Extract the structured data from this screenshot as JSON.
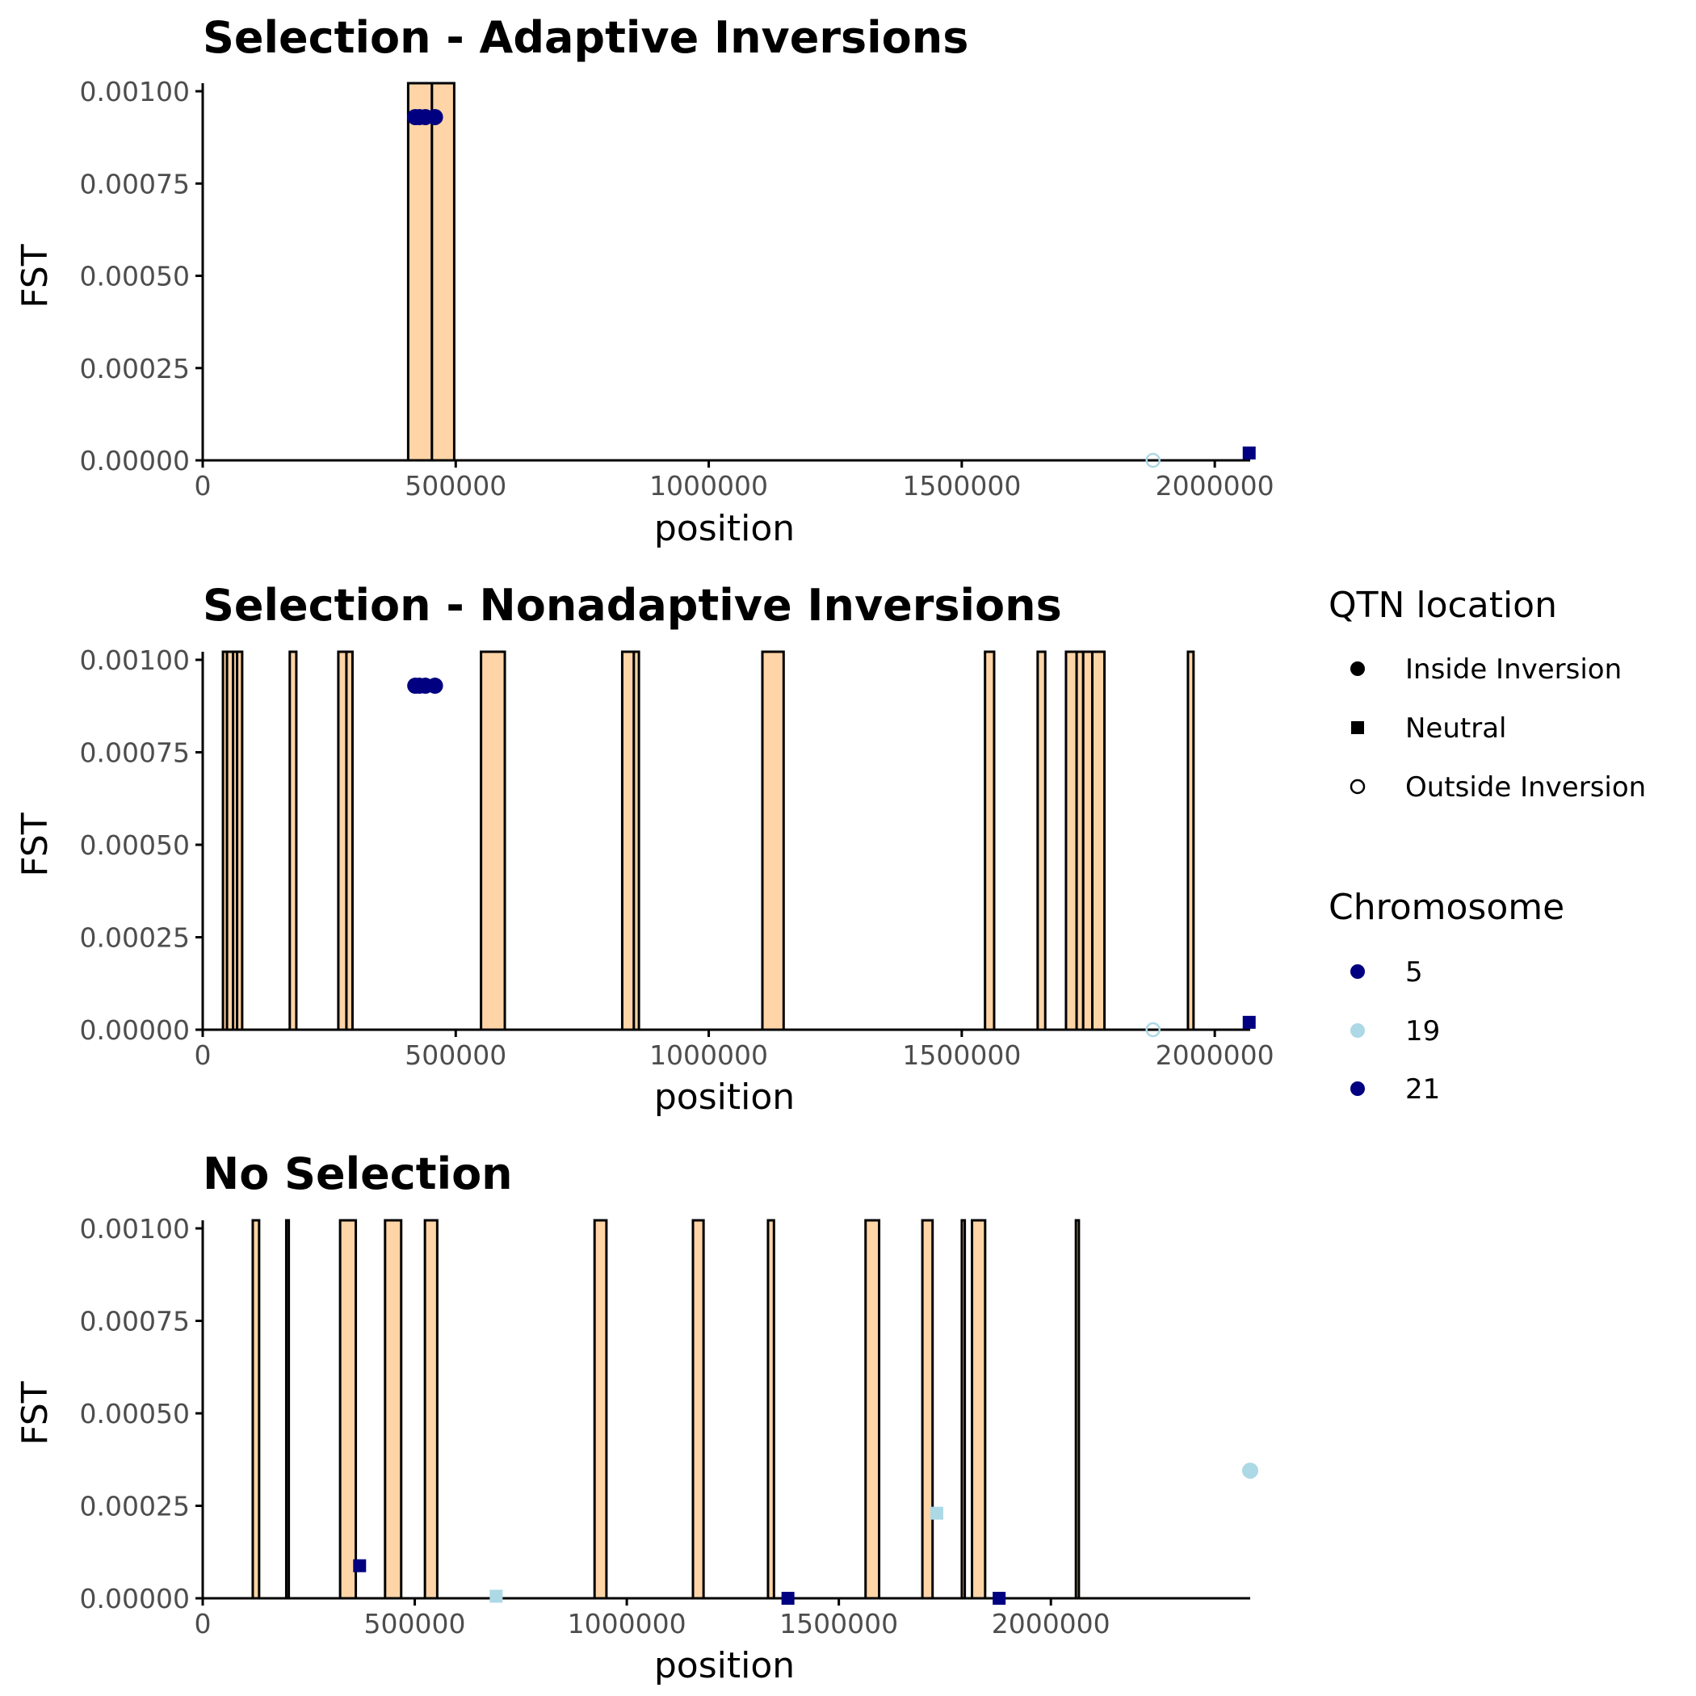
{
  "colors": {
    "inversion_fill": "#FFD4A6",
    "inversion_stroke": "#000000",
    "chromosome_5": "#000080",
    "chromosome_19": "#ADD8E6",
    "chromosome_21": "#000080",
    "axis": "#000000",
    "tick_label": "#4d4d4d"
  },
  "legend": {
    "shape_title": "QTN location",
    "shape_items": [
      {
        "label": "Inside Inversion",
        "shape": "filled-circle"
      },
      {
        "label": "Neutral",
        "shape": "filled-square"
      },
      {
        "label": "Outside Inversion",
        "shape": "open-circle"
      }
    ],
    "color_title": "Chromosome",
    "color_items": [
      {
        "label": "5",
        "color": "#000080"
      },
      {
        "label": "19",
        "color": "#ADD8E6"
      },
      {
        "label": "21",
        "color": "#000080"
      }
    ]
  },
  "chart_data": [
    {
      "type": "scatter",
      "title": "Selection - Adaptive Inversions",
      "xlabel": "position",
      "ylabel": "FST",
      "xlim": [
        0,
        2070000
      ],
      "ylim": [
        0,
        0.001
      ],
      "x_ticks": [
        0,
        500000,
        1000000,
        1500000,
        2000000
      ],
      "x_tick_labels": [
        "0",
        "500000",
        "1000000",
        "1500000",
        "2000000"
      ],
      "y_ticks": [
        0,
        0.00025,
        0.0005,
        0.00075,
        0.001
      ],
      "y_tick_labels": [
        "0.00000",
        "0.00025",
        "0.00050",
        "0.00075",
        "0.00100"
      ],
      "inversions": [
        [
          406000,
          453000
        ],
        [
          453000,
          497000
        ]
      ],
      "points": [
        {
          "x": 420000,
          "y": 0.00093,
          "chromosome": "5",
          "location": "Inside Inversion"
        },
        {
          "x": 428000,
          "y": 0.00093,
          "chromosome": "5",
          "location": "Inside Inversion"
        },
        {
          "x": 440000,
          "y": 0.00093,
          "chromosome": "5",
          "location": "Inside Inversion"
        },
        {
          "x": 459000,
          "y": 0.00093,
          "chromosome": "5",
          "location": "Inside Inversion"
        },
        {
          "x": 1878000,
          "y": 0.0,
          "chromosome": "19",
          "location": "Outside Inversion"
        },
        {
          "x": 2068000,
          "y": 2e-05,
          "chromosome": "21",
          "location": "Neutral"
        }
      ]
    },
    {
      "type": "scatter",
      "title": "Selection - Nonadaptive Inversions",
      "xlabel": "position",
      "ylabel": "FST",
      "xlim": [
        0,
        2070000
      ],
      "ylim": [
        0,
        0.001
      ],
      "x_ticks": [
        0,
        500000,
        1000000,
        1500000,
        2000000
      ],
      "x_tick_labels": [
        "0",
        "500000",
        "1000000",
        "1500000",
        "2000000"
      ],
      "y_ticks": [
        0,
        0.00025,
        0.0005,
        0.00075,
        0.001
      ],
      "y_tick_labels": [
        "0.00000",
        "0.00025",
        "0.00050",
        "0.00075",
        "0.00100"
      ],
      "inversions": [
        [
          40000,
          48000
        ],
        [
          48000,
          60000
        ],
        [
          60000,
          68000
        ],
        [
          68000,
          78000
        ],
        [
          172000,
          185000
        ],
        [
          268000,
          284000
        ],
        [
          284000,
          296000
        ],
        [
          550000,
          597000
        ],
        [
          829000,
          852000
        ],
        [
          852000,
          862000
        ],
        [
          1106000,
          1148000
        ],
        [
          1546000,
          1564000
        ],
        [
          1650000,
          1665000
        ],
        [
          1706000,
          1727000
        ],
        [
          1727000,
          1740000
        ],
        [
          1740000,
          1758000
        ],
        [
          1758000,
          1782000
        ],
        [
          1947000,
          1958000
        ]
      ],
      "points": [
        {
          "x": 420000,
          "y": 0.00093,
          "chromosome": "5",
          "location": "Inside Inversion"
        },
        {
          "x": 428000,
          "y": 0.00093,
          "chromosome": "5",
          "location": "Inside Inversion"
        },
        {
          "x": 440000,
          "y": 0.00093,
          "chromosome": "5",
          "location": "Inside Inversion"
        },
        {
          "x": 459000,
          "y": 0.00093,
          "chromosome": "5",
          "location": "Inside Inversion"
        },
        {
          "x": 1878000,
          "y": 0.0,
          "chromosome": "19",
          "location": "Outside Inversion"
        },
        {
          "x": 2068000,
          "y": 2e-05,
          "chromosome": "21",
          "location": "Neutral"
        }
      ]
    },
    {
      "type": "scatter",
      "title": "No Selection",
      "xlabel": "position",
      "ylabel": "FST",
      "xlim": [
        0,
        2470000
      ],
      "ylim": [
        0,
        0.001
      ],
      "x_ticks": [
        0,
        500000,
        1000000,
        1500000,
        2000000
      ],
      "x_tick_labels": [
        "0",
        "500000",
        "1000000",
        "1500000",
        "2000000"
      ],
      "y_ticks": [
        0,
        0.00025,
        0.0005,
        0.00075,
        0.001
      ],
      "y_tick_labels": [
        "0.00000",
        "0.00025",
        "0.00050",
        "0.00075",
        "0.00100"
      ],
      "inversions": [
        [
          118000,
          133000
        ],
        [
          197000,
          203000
        ],
        [
          324000,
          361000
        ],
        [
          430000,
          468000
        ],
        [
          524000,
          553000
        ],
        [
          924000,
          952000
        ],
        [
          1156000,
          1181000
        ],
        [
          1333000,
          1347000
        ],
        [
          1563000,
          1595000
        ],
        [
          1697000,
          1721000
        ],
        [
          1790000,
          1797000
        ],
        [
          1814000,
          1845000
        ],
        [
          2059000,
          2066000
        ]
      ],
      "points": [
        {
          "x": 370000,
          "y": 8.8e-05,
          "chromosome": "21",
          "location": "Neutral"
        },
        {
          "x": 692000,
          "y": 5.5e-06,
          "chromosome": "19",
          "location": "Neutral"
        },
        {
          "x": 1380000,
          "y": 0.0,
          "chromosome": "21",
          "location": "Neutral"
        },
        {
          "x": 1731000,
          "y": 0.00023,
          "chromosome": "19",
          "location": "Neutral"
        },
        {
          "x": 1878000,
          "y": 0.0,
          "chromosome": "21",
          "location": "Neutral"
        },
        {
          "x": 2470000,
          "y": 0.000345,
          "chromosome": "19",
          "location": "Inside Inversion"
        }
      ]
    }
  ]
}
